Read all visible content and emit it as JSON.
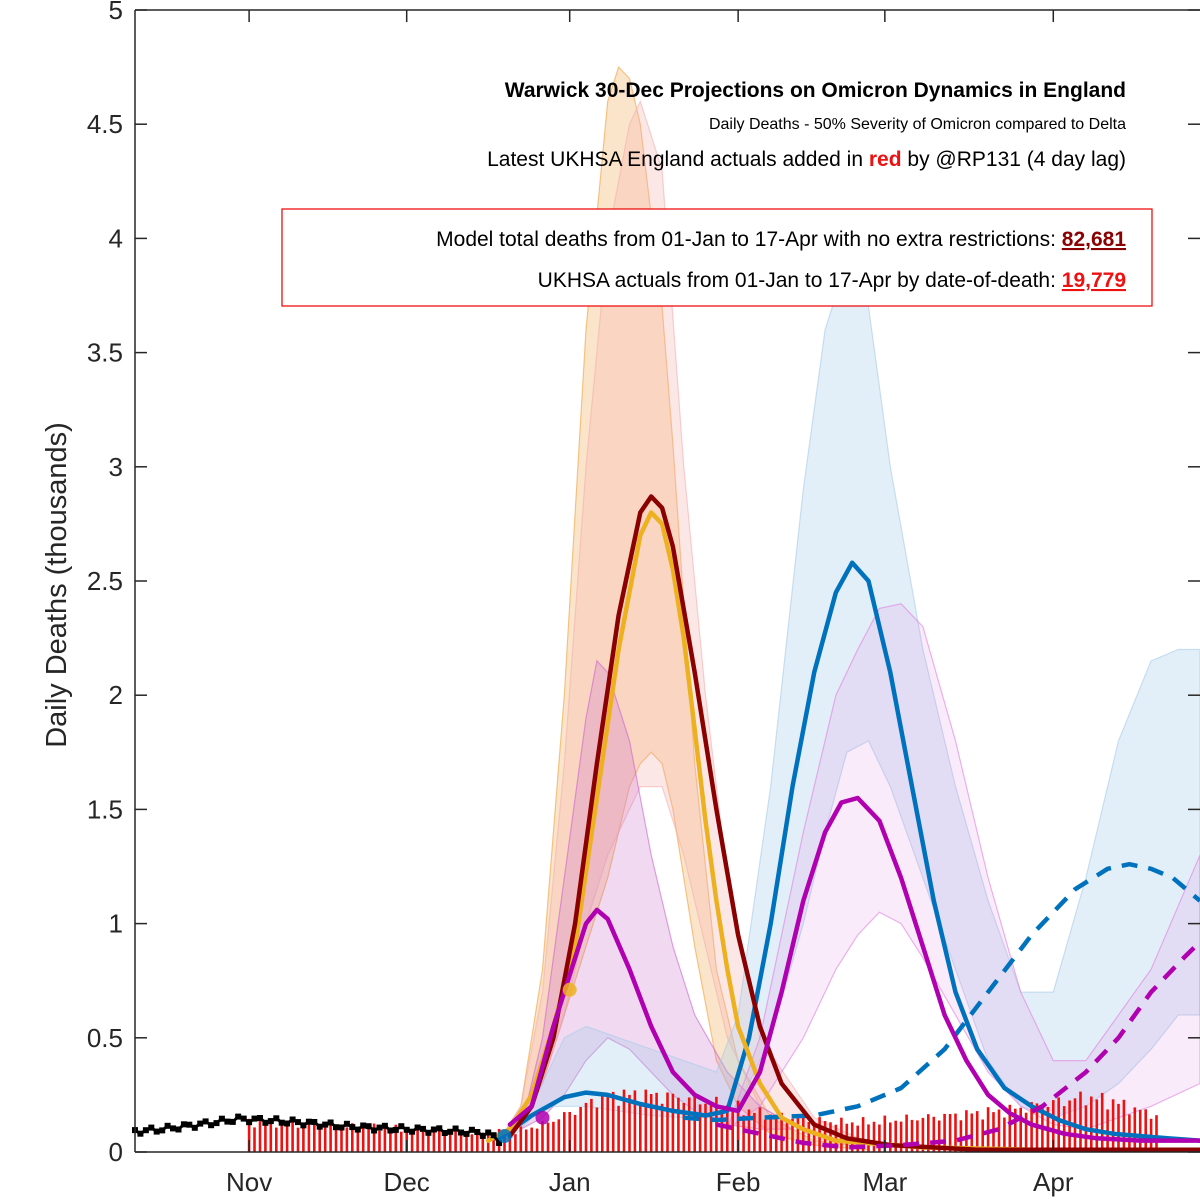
{
  "chart_data": {
    "type": "line",
    "title": "Warwick 30-Dec Projections on Omicron Dynamics in England",
    "subtitle": "Daily Deaths - 50% Severity of Omicron compared to Delta",
    "note": {
      "before": "Latest UKHSA England actuals added in ",
      "highlight": "red",
      "after": " by @RP131 (4 day lag)",
      "highlight_color": "#ee1111"
    },
    "ylabel": "Daily Deaths (thousands)",
    "xlabel": "",
    "ylim": [
      0,
      5
    ],
    "yticks": [
      "0",
      "0.5",
      "1",
      "1.5",
      "2",
      "2.5",
      "3",
      "3.5",
      "4",
      "4.5",
      "5"
    ],
    "xrange_days": [
      -35,
      161
    ],
    "xticks": [
      {
        "label": "Nov",
        "day": -14
      },
      {
        "label": "Dec",
        "day": 15
      },
      {
        "label": "Jan",
        "day": 45
      },
      {
        "label": "Feb",
        "day": 76
      },
      {
        "label": "Mar",
        "day": 103
      },
      {
        "label": "Apr",
        "day": 134
      }
    ],
    "grid": false,
    "infobox": {
      "line1_text": "Model total deaths from 01-Jan to 17-Apr with no extra restrictions: ",
      "line1_value": "82,681",
      "line1_color": "#8b0000",
      "line2_text": "UKHSA actuals from 01-Jan to 17-Apr by date-of-death: ",
      "line2_value": "19,779",
      "line2_color": "#ee1111"
    },
    "history": {
      "color": "#000000",
      "points": [
        [
          -35,
          0.09
        ],
        [
          -30,
          0.1
        ],
        [
          -25,
          0.115
        ],
        [
          -20,
          0.13
        ],
        [
          -16,
          0.145
        ],
        [
          -12,
          0.14
        ],
        [
          -5,
          0.13
        ],
        [
          0,
          0.12
        ],
        [
          5,
          0.11
        ],
        [
          10,
          0.105
        ],
        [
          15,
          0.1
        ],
        [
          20,
          0.095
        ],
        [
          25,
          0.09
        ],
        [
          28,
          0.085
        ],
        [
          30,
          0.08
        ],
        [
          32,
          0.05
        ]
      ]
    },
    "actuals": {
      "color": "#ee1111",
      "points": [
        [
          -14,
          0.13
        ],
        [
          -10,
          0.13
        ],
        [
          -5,
          0.125
        ],
        [
          0,
          0.12
        ],
        [
          5,
          0.11
        ],
        [
          10,
          0.105
        ],
        [
          15,
          0.1
        ],
        [
          20,
          0.095
        ],
        [
          25,
          0.09
        ],
        [
          30,
          0.085
        ],
        [
          35,
          0.09
        ],
        [
          40,
          0.12
        ],
        [
          45,
          0.17
        ],
        [
          50,
          0.23
        ],
        [
          55,
          0.25
        ],
        [
          60,
          0.25
        ],
        [
          65,
          0.24
        ],
        [
          70,
          0.22
        ],
        [
          75,
          0.2
        ],
        [
          80,
          0.17
        ],
        [
          85,
          0.15
        ],
        [
          90,
          0.14
        ],
        [
          95,
          0.13
        ],
        [
          100,
          0.13
        ],
        [
          105,
          0.14
        ],
        [
          110,
          0.15
        ],
        [
          115,
          0.16
        ],
        [
          120,
          0.17
        ],
        [
          125,
          0.18
        ],
        [
          130,
          0.2
        ],
        [
          135,
          0.22
        ],
        [
          140,
          0.24
        ],
        [
          145,
          0.22
        ],
        [
          150,
          0.18
        ],
        [
          153,
          0.16
        ]
      ]
    },
    "bands": [
      {
        "color": "#f0a040",
        "opacity": 0.28,
        "points": [
          [
            32,
            0.05,
            0.05
          ],
          [
            36,
            0.12,
            0.2
          ],
          [
            40,
            0.3,
            0.8
          ],
          [
            44,
            0.6,
            2.0
          ],
          [
            48,
            0.9,
            3.6
          ],
          [
            52,
            1.2,
            4.6
          ],
          [
            54,
            1.4,
            4.75
          ],
          [
            56,
            1.6,
            4.7
          ],
          [
            58,
            1.7,
            4.5
          ],
          [
            60,
            1.75,
            4.1
          ],
          [
            62,
            1.7,
            3.7
          ],
          [
            64,
            1.5,
            3.1
          ],
          [
            66,
            1.2,
            2.4
          ],
          [
            68,
            0.9,
            1.7
          ],
          [
            72,
            0.4,
            0.8
          ],
          [
            76,
            0.2,
            0.4
          ],
          [
            82,
            0.08,
            0.15
          ],
          [
            90,
            0.03,
            0.05
          ],
          [
            100,
            0.01,
            0.02
          ]
        ]
      },
      {
        "color": "#f4b0b0",
        "opacity": 0.3,
        "points": [
          [
            32,
            0.05,
            0.05
          ],
          [
            36,
            0.12,
            0.2
          ],
          [
            40,
            0.3,
            0.7
          ],
          [
            44,
            0.6,
            1.7
          ],
          [
            48,
            1.0,
            3.0
          ],
          [
            52,
            1.3,
            4.0
          ],
          [
            56,
            1.5,
            4.5
          ],
          [
            58,
            1.6,
            4.6
          ],
          [
            62,
            1.6,
            4.3
          ],
          [
            66,
            1.3,
            3.0
          ],
          [
            70,
            0.9,
            2.0
          ],
          [
            74,
            0.5,
            1.2
          ],
          [
            80,
            0.2,
            0.5
          ],
          [
            90,
            0.06,
            0.15
          ],
          [
            100,
            0.02,
            0.04
          ]
        ]
      },
      {
        "color": "#cc66cc",
        "opacity": 0.25,
        "points": [
          [
            36,
            0.1,
            0.1
          ],
          [
            40,
            0.15,
            0.5
          ],
          [
            44,
            0.25,
            1.2
          ],
          [
            48,
            0.4,
            1.9
          ],
          [
            50,
            0.45,
            2.15
          ],
          [
            52,
            0.5,
            2.1
          ],
          [
            56,
            0.45,
            1.8
          ],
          [
            60,
            0.35,
            1.3
          ],
          [
            64,
            0.25,
            0.9
          ],
          [
            68,
            0.18,
            0.6
          ],
          [
            74,
            0.12,
            0.35
          ],
          [
            80,
            0.1,
            0.2
          ],
          [
            86,
            0.1,
            0.12
          ]
        ]
      },
      {
        "color": "#a8cce8",
        "opacity": 0.32,
        "points": [
          [
            34,
            0.05,
            0.05
          ],
          [
            40,
            0.2,
            0.3
          ],
          [
            44,
            0.2,
            0.5
          ],
          [
            48,
            0.2,
            0.55
          ],
          [
            54,
            0.18,
            0.5
          ],
          [
            60,
            0.16,
            0.45
          ],
          [
            66,
            0.15,
            0.4
          ],
          [
            72,
            0.15,
            0.35
          ],
          [
            76,
            0.2,
            0.6
          ],
          [
            82,
            0.5,
            1.6
          ],
          [
            88,
            1.0,
            2.9
          ],
          [
            92,
            1.4,
            3.6
          ],
          [
            96,
            1.75,
            3.9
          ],
          [
            100,
            1.8,
            3.7
          ],
          [
            104,
            1.6,
            3.0
          ],
          [
            110,
            1.2,
            2.2
          ],
          [
            116,
            0.8,
            1.6
          ],
          [
            122,
            0.4,
            1.1
          ],
          [
            128,
            0.2,
            0.7
          ],
          [
            134,
            0.15,
            0.7
          ],
          [
            140,
            0.2,
            1.2
          ],
          [
            146,
            0.3,
            1.8
          ],
          [
            152,
            0.45,
            2.15
          ],
          [
            157,
            0.6,
            2.2
          ],
          [
            161,
            0.6,
            2.2
          ]
        ]
      },
      {
        "color": "#e080e0",
        "opacity": 0.16,
        "points": [
          [
            74,
            0.1,
            0.1
          ],
          [
            80,
            0.2,
            0.5
          ],
          [
            88,
            0.5,
            1.4
          ],
          [
            94,
            0.8,
            2.0
          ],
          [
            98,
            0.95,
            2.2
          ],
          [
            102,
            1.05,
            2.38
          ],
          [
            106,
            1.0,
            2.4
          ],
          [
            110,
            0.85,
            2.3
          ],
          [
            116,
            0.6,
            1.8
          ],
          [
            122,
            0.35,
            1.2
          ],
          [
            128,
            0.2,
            0.7
          ],
          [
            134,
            0.12,
            0.4
          ],
          [
            140,
            0.1,
            0.4
          ],
          [
            146,
            0.15,
            0.6
          ],
          [
            152,
            0.2,
            0.8
          ],
          [
            161,
            0.3,
            1.3
          ]
        ]
      }
    ],
    "series": [
      {
        "color": "#0072bd",
        "dashed": false,
        "points": [
          [
            32,
            0.06
          ],
          [
            38,
            0.16
          ],
          [
            44,
            0.24
          ],
          [
            48,
            0.26
          ],
          [
            52,
            0.25
          ],
          [
            58,
            0.21
          ],
          [
            64,
            0.18
          ],
          [
            70,
            0.16
          ],
          [
            74,
            0.18
          ],
          [
            78,
            0.5
          ],
          [
            82,
            1.0
          ],
          [
            86,
            1.6
          ],
          [
            90,
            2.1
          ],
          [
            94,
            2.45
          ],
          [
            97,
            2.58
          ],
          [
            100,
            2.5
          ],
          [
            104,
            2.1
          ],
          [
            108,
            1.6
          ],
          [
            112,
            1.1
          ],
          [
            116,
            0.7
          ],
          [
            120,
            0.45
          ],
          [
            125,
            0.28
          ],
          [
            130,
            0.2
          ],
          [
            135,
            0.14
          ],
          [
            140,
            0.1
          ],
          [
            145,
            0.08
          ],
          [
            150,
            0.07
          ],
          [
            155,
            0.06
          ],
          [
            161,
            0.05
          ]
        ]
      },
      {
        "color": "#0072bd",
        "dashed": true,
        "points": [
          [
            66,
            0.15
          ],
          [
            72,
            0.14
          ],
          [
            80,
            0.15
          ],
          [
            90,
            0.16
          ],
          [
            98,
            0.2
          ],
          [
            106,
            0.28
          ],
          [
            114,
            0.45
          ],
          [
            122,
            0.7
          ],
          [
            130,
            0.95
          ],
          [
            138,
            1.15
          ],
          [
            144,
            1.24
          ],
          [
            148,
            1.26
          ],
          [
            152,
            1.24
          ],
          [
            156,
            1.2
          ],
          [
            161,
            1.1
          ]
        ]
      },
      {
        "color": "#edb120",
        "dashed": false,
        "points": [
          [
            30,
            0.05
          ],
          [
            34,
            0.1
          ],
          [
            38,
            0.25
          ],
          [
            42,
            0.55
          ],
          [
            46,
            0.9
          ],
          [
            50,
            1.55
          ],
          [
            54,
            2.2
          ],
          [
            58,
            2.7
          ],
          [
            60,
            2.8
          ],
          [
            62,
            2.75
          ],
          [
            64,
            2.55
          ],
          [
            66,
            2.25
          ],
          [
            68,
            1.85
          ],
          [
            70,
            1.45
          ],
          [
            72,
            1.1
          ],
          [
            74,
            0.8
          ],
          [
            76,
            0.55
          ],
          [
            80,
            0.3
          ],
          [
            84,
            0.15
          ],
          [
            88,
            0.1
          ],
          [
            94,
            0.05
          ],
          [
            110,
            0.02
          ],
          [
            130,
            0.01
          ],
          [
            161,
            0.01
          ]
        ]
      },
      {
        "color": "#8b0000",
        "dashed": false,
        "points": [
          [
            34,
            0.07
          ],
          [
            38,
            0.2
          ],
          [
            42,
            0.5
          ],
          [
            46,
            1.0
          ],
          [
            50,
            1.7
          ],
          [
            54,
            2.35
          ],
          [
            58,
            2.8
          ],
          [
            60,
            2.87
          ],
          [
            62,
            2.82
          ],
          [
            64,
            2.65
          ],
          [
            68,
            2.1
          ],
          [
            72,
            1.5
          ],
          [
            76,
            0.95
          ],
          [
            80,
            0.55
          ],
          [
            84,
            0.3
          ],
          [
            90,
            0.12
          ],
          [
            96,
            0.06
          ],
          [
            104,
            0.03
          ],
          [
            120,
            0.01
          ],
          [
            161,
            0.01
          ]
        ]
      },
      {
        "color": "#b000b0",
        "dashed": false,
        "points": [
          [
            34,
            0.12
          ],
          [
            38,
            0.2
          ],
          [
            42,
            0.55
          ],
          [
            46,
            0.85
          ],
          [
            48,
            1.0
          ],
          [
            50,
            1.06
          ],
          [
            52,
            1.02
          ],
          [
            56,
            0.8
          ],
          [
            60,
            0.55
          ],
          [
            64,
            0.35
          ],
          [
            68,
            0.25
          ],
          [
            72,
            0.2
          ],
          [
            76,
            0.18
          ],
          [
            80,
            0.35
          ],
          [
            84,
            0.7
          ],
          [
            88,
            1.1
          ],
          [
            92,
            1.4
          ],
          [
            95,
            1.53
          ],
          [
            98,
            1.55
          ],
          [
            102,
            1.45
          ],
          [
            106,
            1.2
          ],
          [
            110,
            0.9
          ],
          [
            114,
            0.6
          ],
          [
            118,
            0.4
          ],
          [
            122,
            0.25
          ],
          [
            126,
            0.17
          ],
          [
            130,
            0.12
          ],
          [
            136,
            0.08
          ],
          [
            142,
            0.06
          ],
          [
            150,
            0.05
          ],
          [
            161,
            0.05
          ]
        ]
      },
      {
        "color": "#b000b0",
        "dashed": true,
        "points": [
          [
            72,
            0.12
          ],
          [
            80,
            0.08
          ],
          [
            88,
            0.04
          ],
          [
            96,
            0.02
          ],
          [
            106,
            0.03
          ],
          [
            116,
            0.05
          ],
          [
            124,
            0.1
          ],
          [
            132,
            0.2
          ],
          [
            140,
            0.35
          ],
          [
            146,
            0.5
          ],
          [
            152,
            0.7
          ],
          [
            158,
            0.85
          ],
          [
            161,
            0.92
          ]
        ]
      }
    ],
    "markers": [
      {
        "day": 33,
        "value": 0.07,
        "color": "#0072bd"
      },
      {
        "day": 40,
        "value": 0.15,
        "color": "#b000b0"
      },
      {
        "day": 45,
        "value": 0.71,
        "color": "#edb120"
      }
    ]
  }
}
